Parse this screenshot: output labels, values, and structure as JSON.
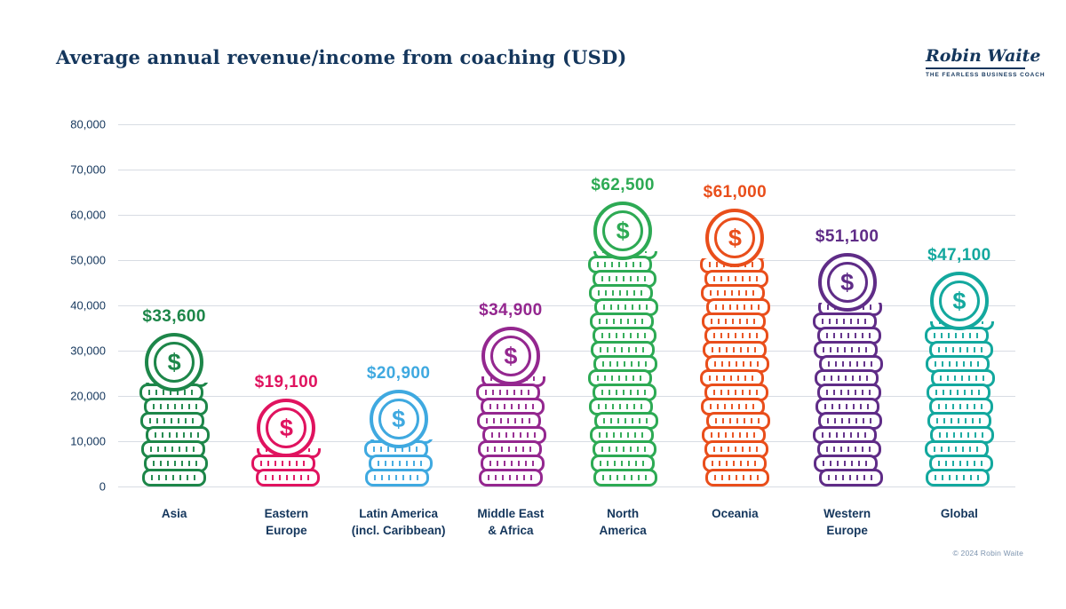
{
  "header": {
    "title": "Average annual revenue/income from coaching (USD)",
    "logo": {
      "name": "Robin Waite",
      "tagline": "THE FEARLESS BUSINESS COACH"
    }
  },
  "footer": {
    "copyright": "© 2024 Robin Waite"
  },
  "chart_data": {
    "type": "bar",
    "bar_style": "coin-stack-pictogram",
    "title": "Average annual revenue/income from coaching (USD)",
    "categories": [
      "Asia",
      "Eastern\nEurope",
      "Latin America\n(incl. Caribbean)",
      "Middle East\n& Africa",
      "North\nAmerica",
      "Oceania",
      "Western\nEurope",
      "Global"
    ],
    "values": [
      33600,
      19100,
      20900,
      34900,
      62500,
      61000,
      51100,
      47100
    ],
    "value_labels": [
      "$33,600",
      "$19,100",
      "$20,900",
      "$34,900",
      "$62,500",
      "$61,000",
      "$51,100",
      "$47,100"
    ],
    "colors": [
      "#1d8649",
      "#e0135f",
      "#3fa9e0",
      "#94278f",
      "#2daa54",
      "#e94e1b",
      "#5f2c87",
      "#13a89e"
    ],
    "coin_symbol": "$",
    "xlabel": "",
    "ylabel": "",
    "ylim": [
      0,
      80000
    ],
    "ytick_interval": 10000,
    "yticks": [
      "80,000",
      "70,000",
      "60,000",
      "50,000",
      "40,000",
      "30,000",
      "20,000",
      "10,000",
      "0"
    ],
    "grid": true,
    "legend": "none"
  }
}
